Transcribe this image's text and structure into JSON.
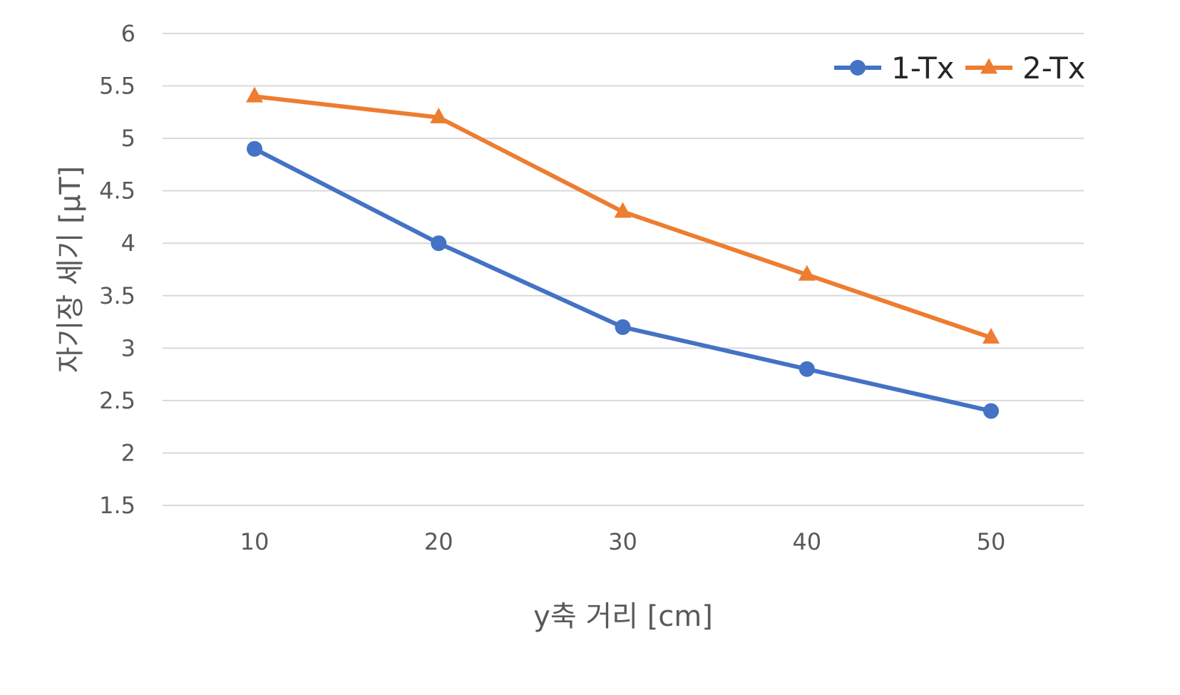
{
  "chart_data": {
    "type": "line",
    "title": "",
    "xlabel": "y축 거리 [cm]",
    "ylabel": "자기장 세기 [μT]",
    "categories": [
      "10",
      "20",
      "30",
      "40",
      "50"
    ],
    "x": [
      10,
      20,
      30,
      40,
      50
    ],
    "ylim": [
      1.5,
      6
    ],
    "yticks": [
      1.5,
      2,
      2.5,
      3,
      3.5,
      4,
      4.5,
      5,
      5.5,
      6
    ],
    "ytick_labels": [
      "1.5",
      "2",
      "2.5",
      "3",
      "3.5",
      "4",
      "4.5",
      "5",
      "5.5",
      "6"
    ],
    "grid": true,
    "legend_position": "top-right",
    "series": [
      {
        "name": "1-Tx",
        "color": "#4472C4",
        "marker": "circle",
        "values": [
          4.9,
          4.0,
          3.2,
          2.8,
          2.4
        ]
      },
      {
        "name": "2-Tx",
        "color": "#ED7D31",
        "marker": "triangle",
        "values": [
          5.4,
          5.2,
          4.3,
          3.7,
          3.1
        ]
      }
    ]
  }
}
